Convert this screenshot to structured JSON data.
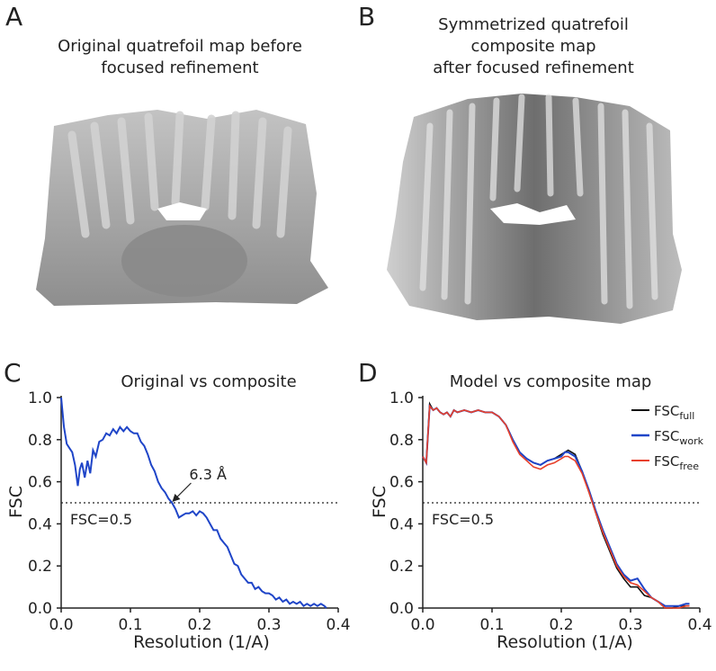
{
  "panels": {
    "a": {
      "letter": "A",
      "title_line1": "Original quatrefoil map before",
      "title_line2": "focused refinement"
    },
    "b": {
      "letter": "B",
      "title_line1": "Symmetrized quatrefoil",
      "title_line2": "composite map",
      "title_line3": "after focused refinement"
    },
    "c": {
      "letter": "C"
    },
    "d": {
      "letter": "D"
    }
  },
  "colors": {
    "blue": "#1f45c8",
    "red": "#e8402a",
    "black": "#111111",
    "map_gray": "#9a9a9a"
  },
  "chart_data": [
    {
      "type": "line",
      "title": "Original vs composite",
      "xlabel": "Resolution (1/A)",
      "ylabel": "FSC",
      "xlim": [
        0,
        0.4
      ],
      "ylim": [
        0,
        1.0
      ],
      "xticks": [
        "0.0",
        "0.1",
        "0.2",
        "0.3",
        "0.4"
      ],
      "yticks": [
        "0.0",
        "0.2",
        "0.4",
        "0.6",
        "0.8",
        "1.0"
      ],
      "threshold": {
        "y": 0.5,
        "label": "FSC=0.5"
      },
      "annotation": {
        "text": "6.3 Å",
        "x": 0.159,
        "y": 0.5
      },
      "series": [
        {
          "color": "#1f45c8",
          "x": [
            0.0,
            0.004,
            0.008,
            0.012,
            0.016,
            0.02,
            0.024,
            0.027,
            0.03,
            0.034,
            0.038,
            0.042,
            0.046,
            0.05,
            0.055,
            0.06,
            0.065,
            0.07,
            0.075,
            0.08,
            0.085,
            0.09,
            0.095,
            0.1,
            0.105,
            0.11,
            0.115,
            0.12,
            0.125,
            0.13,
            0.135,
            0.14,
            0.145,
            0.15,
            0.155,
            0.16,
            0.165,
            0.17,
            0.175,
            0.18,
            0.185,
            0.19,
            0.195,
            0.2,
            0.205,
            0.21,
            0.215,
            0.22,
            0.225,
            0.23,
            0.235,
            0.24,
            0.245,
            0.25,
            0.255,
            0.26,
            0.265,
            0.27,
            0.275,
            0.28,
            0.285,
            0.29,
            0.295,
            0.3,
            0.305,
            0.31,
            0.315,
            0.32,
            0.325,
            0.33,
            0.335,
            0.34,
            0.345,
            0.35,
            0.355,
            0.36,
            0.365,
            0.37,
            0.375,
            0.38,
            0.383
          ],
          "y": [
            1.0,
            0.86,
            0.78,
            0.76,
            0.74,
            0.68,
            0.58,
            0.66,
            0.69,
            0.62,
            0.7,
            0.64,
            0.75,
            0.72,
            0.79,
            0.8,
            0.83,
            0.82,
            0.85,
            0.83,
            0.86,
            0.84,
            0.86,
            0.84,
            0.83,
            0.83,
            0.79,
            0.77,
            0.73,
            0.68,
            0.65,
            0.6,
            0.57,
            0.55,
            0.52,
            0.5,
            0.47,
            0.43,
            0.44,
            0.45,
            0.45,
            0.46,
            0.44,
            0.46,
            0.45,
            0.43,
            0.4,
            0.37,
            0.37,
            0.33,
            0.31,
            0.29,
            0.25,
            0.21,
            0.2,
            0.16,
            0.14,
            0.12,
            0.12,
            0.09,
            0.1,
            0.08,
            0.07,
            0.07,
            0.06,
            0.04,
            0.05,
            0.03,
            0.04,
            0.02,
            0.03,
            0.02,
            0.03,
            0.01,
            0.02,
            0.01,
            0.02,
            0.01,
            0.02,
            0.01,
            0.0
          ]
        }
      ]
    },
    {
      "type": "line",
      "title": "Model vs composite map",
      "xlabel": "Resolution (1/A)",
      "ylabel": "FSC",
      "xlim": [
        0,
        0.4
      ],
      "ylim": [
        0,
        1.0
      ],
      "xticks": [
        "0.0",
        "0.1",
        "0.2",
        "0.3",
        "0.4"
      ],
      "yticks": [
        "0.0",
        "0.2",
        "0.4",
        "0.6",
        "0.8",
        "1.0"
      ],
      "threshold": {
        "y": 0.5,
        "label": "FSC=0.5"
      },
      "legend": "top-right",
      "series": [
        {
          "name": "FSC",
          "sub": "full",
          "color": "#111111",
          "x": [
            0.0,
            0.005,
            0.01,
            0.015,
            0.02,
            0.025,
            0.03,
            0.035,
            0.04,
            0.045,
            0.05,
            0.06,
            0.07,
            0.08,
            0.09,
            0.1,
            0.11,
            0.12,
            0.13,
            0.14,
            0.15,
            0.16,
            0.17,
            0.18,
            0.19,
            0.2,
            0.205,
            0.21,
            0.215,
            0.22,
            0.23,
            0.24,
            0.25,
            0.26,
            0.27,
            0.28,
            0.29,
            0.3,
            0.31,
            0.32,
            0.33,
            0.34,
            0.35,
            0.36,
            0.37,
            0.38,
            0.385
          ],
          "y": [
            0.72,
            0.69,
            0.97,
            0.94,
            0.95,
            0.93,
            0.92,
            0.93,
            0.91,
            0.94,
            0.93,
            0.94,
            0.93,
            0.94,
            0.93,
            0.93,
            0.91,
            0.87,
            0.8,
            0.74,
            0.71,
            0.69,
            0.68,
            0.7,
            0.71,
            0.73,
            0.74,
            0.75,
            0.74,
            0.73,
            0.65,
            0.55,
            0.45,
            0.35,
            0.27,
            0.19,
            0.14,
            0.1,
            0.1,
            0.06,
            0.05,
            0.03,
            0.0,
            0.0,
            0.01,
            0.01,
            0.01
          ]
        },
        {
          "name": "FSC",
          "sub": "work",
          "color": "#1f45c8",
          "x": [
            0.0,
            0.005,
            0.01,
            0.015,
            0.02,
            0.025,
            0.03,
            0.035,
            0.04,
            0.045,
            0.05,
            0.06,
            0.07,
            0.08,
            0.09,
            0.1,
            0.11,
            0.12,
            0.13,
            0.14,
            0.15,
            0.16,
            0.17,
            0.18,
            0.19,
            0.2,
            0.205,
            0.21,
            0.215,
            0.22,
            0.23,
            0.24,
            0.25,
            0.26,
            0.27,
            0.28,
            0.29,
            0.3,
            0.31,
            0.32,
            0.33,
            0.34,
            0.35,
            0.36,
            0.37,
            0.38,
            0.385
          ],
          "y": [
            0.72,
            0.69,
            0.96,
            0.94,
            0.95,
            0.93,
            0.92,
            0.93,
            0.91,
            0.94,
            0.93,
            0.94,
            0.93,
            0.94,
            0.93,
            0.93,
            0.91,
            0.87,
            0.8,
            0.74,
            0.71,
            0.69,
            0.68,
            0.7,
            0.71,
            0.72,
            0.74,
            0.74,
            0.73,
            0.72,
            0.65,
            0.56,
            0.46,
            0.37,
            0.29,
            0.21,
            0.16,
            0.13,
            0.14,
            0.09,
            0.05,
            0.03,
            0.01,
            0.01,
            0.01,
            0.02,
            0.02
          ]
        },
        {
          "name": "FSC",
          "sub": "free",
          "color": "#e8402a",
          "x": [
            0.0,
            0.005,
            0.01,
            0.015,
            0.02,
            0.025,
            0.03,
            0.035,
            0.04,
            0.045,
            0.05,
            0.06,
            0.07,
            0.08,
            0.09,
            0.1,
            0.11,
            0.12,
            0.13,
            0.14,
            0.15,
            0.16,
            0.17,
            0.18,
            0.19,
            0.2,
            0.205,
            0.21,
            0.215,
            0.22,
            0.23,
            0.24,
            0.25,
            0.26,
            0.27,
            0.28,
            0.29,
            0.3,
            0.31,
            0.32,
            0.33,
            0.34,
            0.35,
            0.36,
            0.37,
            0.38,
            0.385
          ],
          "y": [
            0.72,
            0.69,
            0.96,
            0.94,
            0.95,
            0.93,
            0.92,
            0.93,
            0.91,
            0.94,
            0.93,
            0.94,
            0.93,
            0.94,
            0.93,
            0.93,
            0.91,
            0.87,
            0.79,
            0.73,
            0.7,
            0.67,
            0.66,
            0.68,
            0.69,
            0.71,
            0.72,
            0.72,
            0.71,
            0.7,
            0.64,
            0.55,
            0.45,
            0.36,
            0.28,
            0.2,
            0.15,
            0.12,
            0.11,
            0.08,
            0.05,
            0.03,
            0.0,
            0.0,
            0.0,
            0.01,
            0.01
          ]
        }
      ]
    }
  ]
}
